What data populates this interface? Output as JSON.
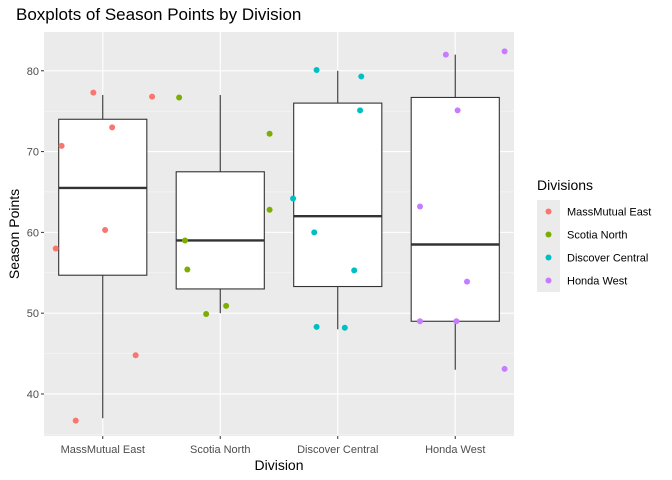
{
  "chart_data": {
    "type": "boxplot",
    "title": "Boxplots of Season Points by Division",
    "xlabel": "Division",
    "ylabel": "Season Points",
    "ylim": [
      34.8,
      84.8
    ],
    "yticks": [
      40,
      50,
      60,
      70,
      80
    ],
    "grid": true,
    "legend_position": "right",
    "legend_title": "Divisions",
    "categories": [
      "MassMutual East",
      "Scotia North",
      "Discover Central",
      "Honda West"
    ],
    "colors": [
      "#F8766D",
      "#7CAE00",
      "#00BFC4",
      "#C77CFF"
    ],
    "boxes": [
      {
        "category": "MassMutual East",
        "min": 37,
        "q1": 54.7,
        "median": 65.5,
        "q3": 74,
        "max": 77
      },
      {
        "category": "Scotia North",
        "min": 50,
        "q1": 53,
        "median": 59,
        "q3": 67.5,
        "max": 77
      },
      {
        "category": "Discover Central",
        "min": 48,
        "q1": 53.3,
        "median": 62,
        "q3": 76,
        "max": 80
      },
      {
        "category": "Honda West",
        "min": 43,
        "q1": 49,
        "median": 58.5,
        "q3": 76.7,
        "max": 82
      }
    ],
    "series": [
      {
        "name": "MassMutual East",
        "points": [
          {
            "x": -0.08,
            "y": 77.3
          },
          {
            "x": 0.42,
            "y": 76.8
          },
          {
            "x": 0.08,
            "y": 73
          },
          {
            "x": -0.35,
            "y": 70.7
          },
          {
            "x": 0.02,
            "y": 60.3
          },
          {
            "x": -0.4,
            "y": 58
          },
          {
            "x": 0.28,
            "y": 44.8
          },
          {
            "x": -0.23,
            "y": 36.7
          }
        ]
      },
      {
        "name": "Scotia North",
        "points": [
          {
            "x": -0.35,
            "y": 76.7
          },
          {
            "x": 0.42,
            "y": 72.2
          },
          {
            "x": 0.42,
            "y": 62.8
          },
          {
            "x": -0.3,
            "y": 59
          },
          {
            "x": -0.28,
            "y": 55.4
          },
          {
            "x": 0.05,
            "y": 50.9
          },
          {
            "x": -0.12,
            "y": 49.9
          }
        ]
      },
      {
        "name": "Discover Central",
        "points": [
          {
            "x": -0.18,
            "y": 80.1
          },
          {
            "x": 0.2,
            "y": 79.3
          },
          {
            "x": 0.19,
            "y": 75.1
          },
          {
            "x": -0.38,
            "y": 64.2
          },
          {
            "x": -0.2,
            "y": 60
          },
          {
            "x": 0.14,
            "y": 55.3
          },
          {
            "x": -0.18,
            "y": 48.3
          },
          {
            "x": 0.06,
            "y": 48.2
          }
        ]
      },
      {
        "name": "Honda West",
        "points": [
          {
            "x": -0.08,
            "y": 82
          },
          {
            "x": 0.42,
            "y": 82.4
          },
          {
            "x": 0.02,
            "y": 75.1
          },
          {
            "x": -0.3,
            "y": 63.2
          },
          {
            "x": 0.1,
            "y": 53.9
          },
          {
            "x": -0.3,
            "y": 49
          },
          {
            "x": 0.01,
            "y": 49
          },
          {
            "x": 0.42,
            "y": 43.1
          }
        ]
      }
    ]
  }
}
